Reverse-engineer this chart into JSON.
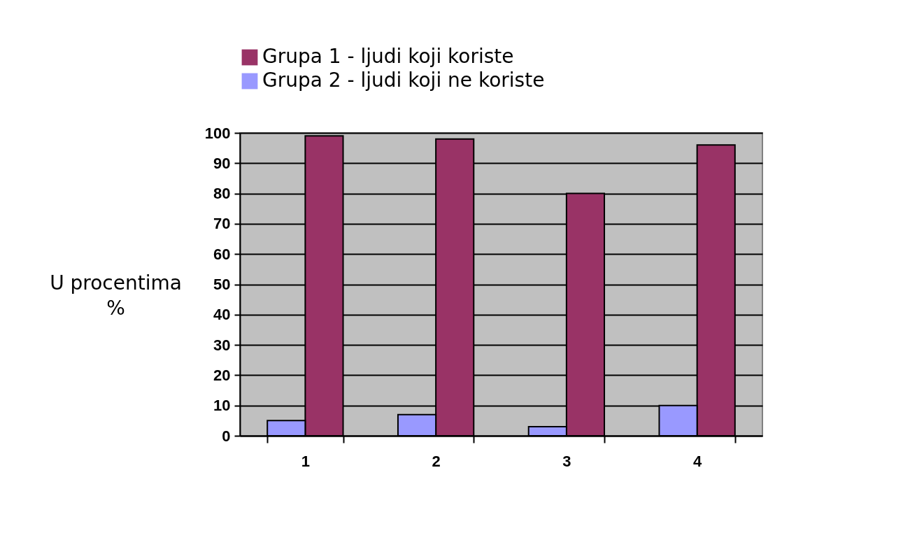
{
  "chart_data": {
    "type": "bar",
    "ylabel": "U procentima %",
    "categories": [
      "1",
      "2",
      "3",
      "4"
    ],
    "series": [
      {
        "name": "Grupa 1 - ljudi koji koriste",
        "color": "#993366",
        "values": [
          99,
          98,
          80,
          96
        ]
      },
      {
        "name": "Grupa 2 - ljudi koji ne koriste",
        "color": "#9999ff",
        "values": [
          5,
          7,
          3,
          10
        ]
      }
    ],
    "ylim": [
      0,
      100
    ],
    "yticks": [
      0,
      10,
      20,
      30,
      40,
      50,
      60,
      70,
      80,
      90,
      100
    ],
    "grid": "y",
    "legend": "top"
  }
}
